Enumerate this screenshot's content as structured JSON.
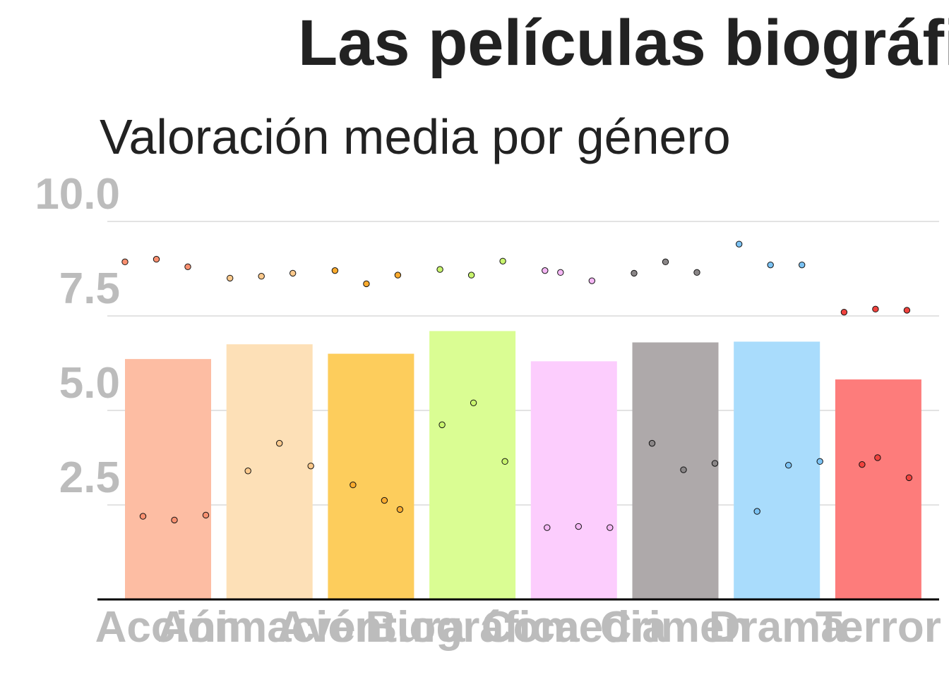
{
  "chart_data": {
    "type": "bar",
    "title": "Las películas biográficas",
    "subtitle": "Valoración media por género",
    "categories": [
      "Acción",
      "Animación",
      "Aventura",
      "Biográfica",
      "Comedia",
      "Crimen",
      "Drama",
      "Terror"
    ],
    "values": [
      6.36,
      6.75,
      6.5,
      7.1,
      6.3,
      6.8,
      6.82,
      5.82
    ],
    "colors": [
      "#fdbda3",
      "#fde0b7",
      "#fdcd5c",
      "#dafd93",
      "#fccdfd",
      "#aea9aa",
      "#a9dcfc",
      "#fd7c7b"
    ],
    "point_colors": [
      "#fa9070",
      "#fcc98c",
      "#fbab2e",
      "#c9f56e",
      "#f5b7f5",
      "#8a8687",
      "#7cc3f4",
      "#f0433e"
    ],
    "points": [
      [
        8.93,
        9.0,
        8.8,
        2.2,
        2.1,
        2.23
      ],
      [
        8.5,
        8.55,
        8.63,
        3.4,
        4.13,
        3.53
      ],
      [
        8.7,
        8.35,
        8.58,
        3.03,
        2.62,
        2.38
      ],
      [
        8.73,
        8.58,
        8.95,
        4.62,
        5.2,
        3.65
      ],
      [
        8.7,
        8.65,
        8.43,
        1.9,
        1.93,
        1.9
      ],
      [
        8.63,
        8.93,
        8.65,
        4.13,
        3.43,
        3.6
      ],
      [
        9.4,
        8.85,
        8.85,
        2.33,
        3.55,
        3.65
      ],
      [
        7.6,
        7.68,
        7.65,
        3.57,
        3.75,
        3.22
      ]
    ],
    "ylim": [
      0,
      10
    ],
    "yticks": [
      "2.5",
      "5.0",
      "7.5",
      "10.0"
    ],
    "grid": true,
    "legend": "none"
  }
}
